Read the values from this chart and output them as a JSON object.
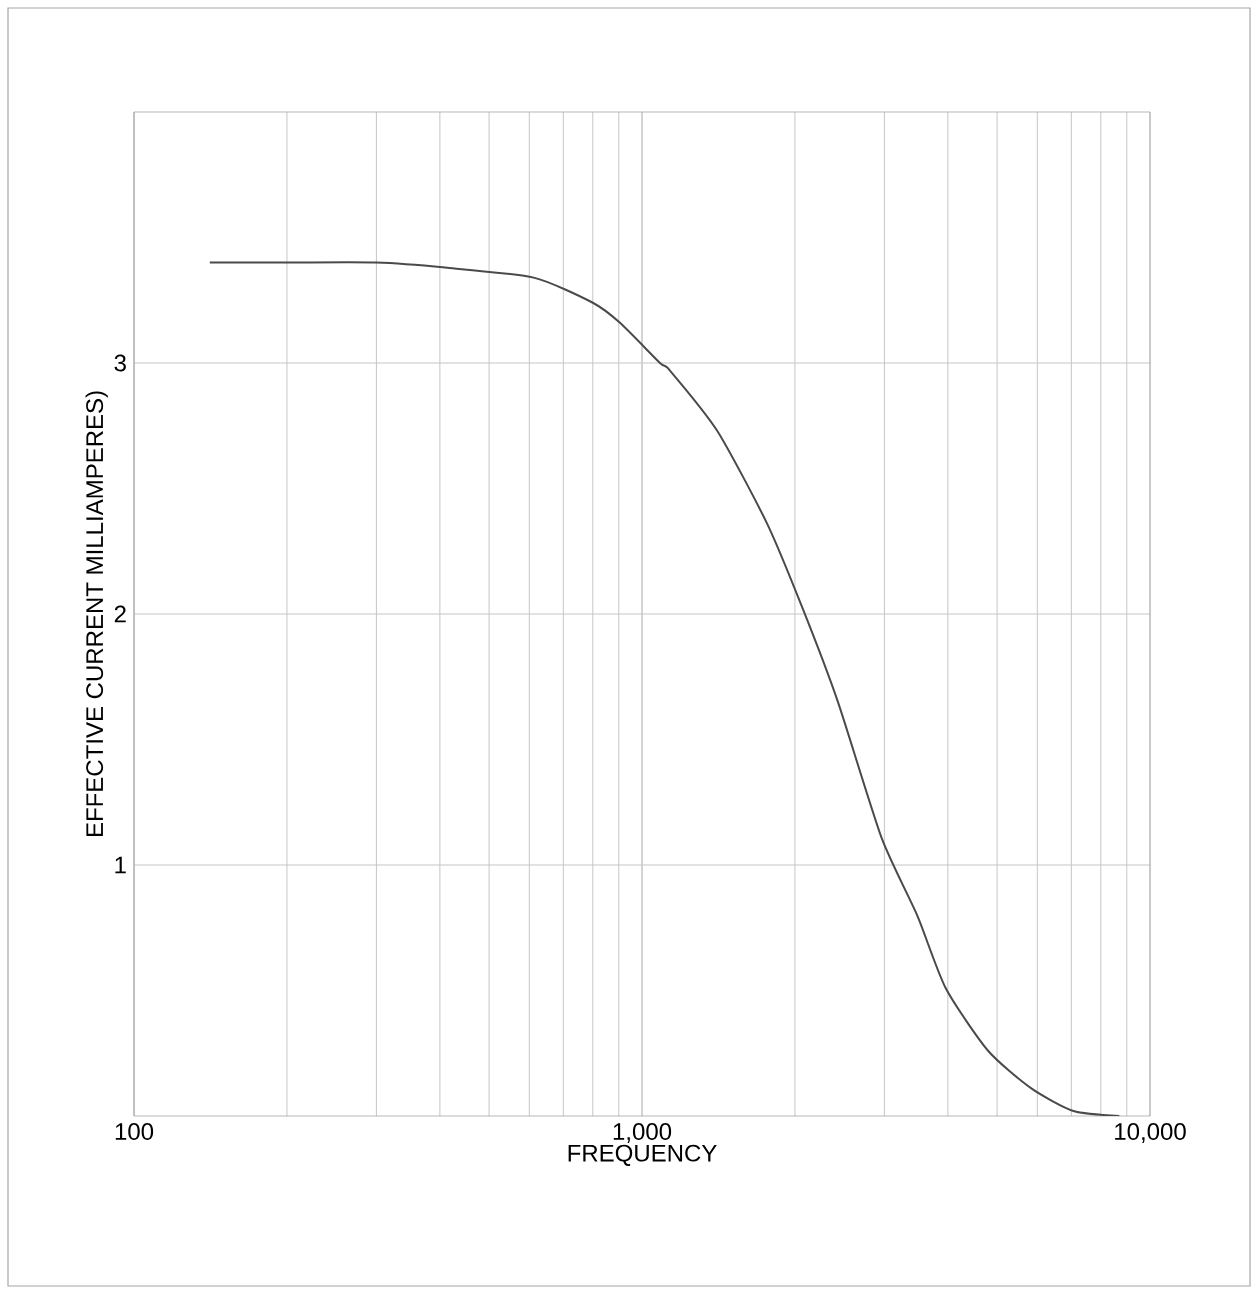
{
  "chart_data": {
    "type": "line",
    "xlabel": "FREQUENCY",
    "ylabel": "EFFECTIVE CURRENT MILLIAMPERES)",
    "log": "x",
    "grid": true,
    "x": [
      141,
      200,
      300,
      410,
      612,
      800,
      905,
      1085,
      1135,
      1406,
      1763,
      2073,
      2430,
      2960,
      3480,
      3960,
      4800,
      5840,
      7070,
      8700
    ],
    "series": [
      {
        "color": "#4a4a4a",
        "values": [
          3.4,
          3.4,
          3.4,
          3.38,
          3.34,
          3.24,
          3.16,
          3.0,
          2.97,
          2.73,
          2.36,
          2.02,
          1.65,
          1.11,
          0.8,
          0.51,
          0.26,
          0.11,
          0.02,
          0.0
        ]
      }
    ],
    "xlim": [
      100,
      10000
    ],
    "ylim": [
      0,
      4
    ],
    "xticks": [
      100,
      {
        "value": 1000,
        "label": "1,000"
      },
      {
        "value": 10000,
        "label": "10,000"
      }
    ],
    "yticks": [
      1,
      2,
      3
    ]
  }
}
